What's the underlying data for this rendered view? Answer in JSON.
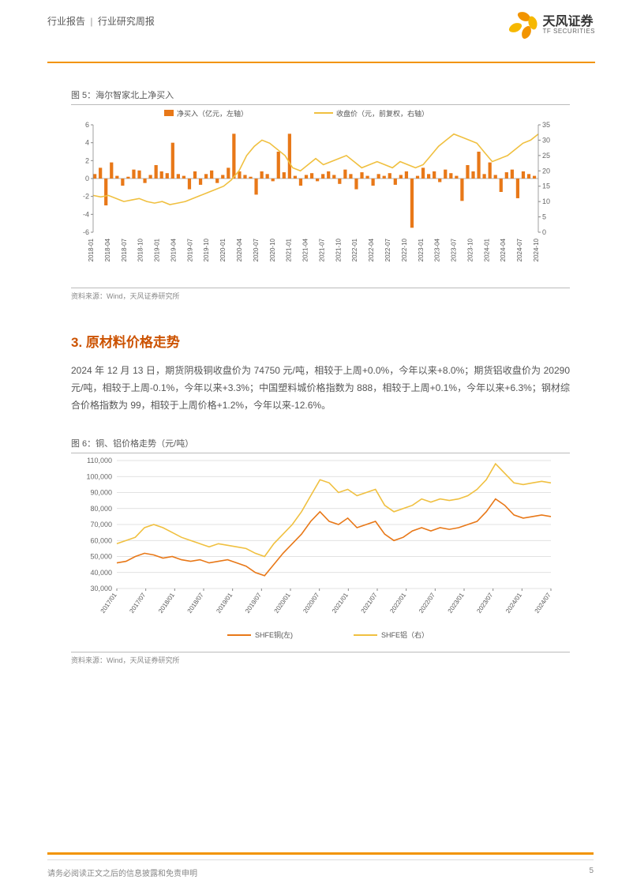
{
  "header": {
    "category": "行业报告",
    "subcategory": "行业研究周报",
    "logo_cn": "天风证券",
    "logo_en": "TF SECURITIES"
  },
  "chart5": {
    "title": "图 5：海尔智家北上净买入",
    "source": "资料来源：Wind，天风证券研究所",
    "legend": [
      {
        "label": "净买入（亿元，左轴）",
        "color": "#e87818"
      },
      {
        "label": "收盘价（元，前复权，右轴）",
        "color": "#f0c040"
      }
    ],
    "y_left": {
      "min": -6,
      "max": 6,
      "ticks": [
        -6,
        -4,
        -2,
        0,
        2,
        4,
        6
      ],
      "label_color": "#666666"
    },
    "y_right": {
      "min": 0,
      "max": 35,
      "ticks": [
        0,
        5,
        10,
        15,
        20,
        25,
        30,
        35
      ],
      "label_color": "#666666"
    },
    "x_labels": [
      "2018-01",
      "2018-04",
      "2018-07",
      "2018-10",
      "2019-01",
      "2019-04",
      "2019-07",
      "2019-10",
      "2020-01",
      "2020-04",
      "2020-07",
      "2020-10",
      "2021-01",
      "2021-04",
      "2021-07",
      "2021-10",
      "2022-01",
      "2022-04",
      "2022-07",
      "2022-10",
      "2023-01",
      "2023-04",
      "2023-07",
      "2023-10",
      "2024-01",
      "2024-04",
      "2024-07",
      "2024-10"
    ],
    "bar_color": "#e87818",
    "line_color": "#f0c040",
    "background": "#ffffff",
    "grid_color": "#dddddd",
    "x_label_fontsize": 8,
    "y_label_fontsize": 9,
    "bars": [
      0.5,
      1.2,
      -3,
      1.8,
      0.3,
      -0.8,
      0.2,
      1.0,
      0.9,
      -0.5,
      0.4,
      1.5,
      0.8,
      0.6,
      4,
      0.5,
      0.3,
      -1.2,
      0.8,
      -0.7,
      0.5,
      0.9,
      -0.5,
      0.4,
      1.2,
      5,
      0.8,
      0.4,
      0.2,
      -1.8,
      0.8,
      0.5,
      -0.3,
      3,
      0.7,
      5,
      0.3,
      -0.8,
      0.4,
      0.6,
      -0.3,
      0.5,
      0.8,
      0.4,
      -0.6,
      1.0,
      0.5,
      -1.2,
      0.7,
      0.3,
      -0.8,
      0.5,
      0.3,
      0.6,
      -0.7,
      0.4,
      0.8,
      -5.5,
      0.3,
      1.2,
      0.5,
      0.8,
      -0.4,
      1.0,
      0.6,
      0.3,
      -2.5,
      1.5,
      0.8,
      3,
      0.5,
      1.8,
      0.4,
      -1.5,
      0.7,
      1.0,
      -2.2,
      0.8,
      0.5,
      0.3
    ],
    "price_line": [
      12,
      11.5,
      12,
      11,
      10,
      10.5,
      11,
      10,
      9.5,
      10,
      9,
      9.5,
      10,
      11,
      12,
      13,
      14,
      15,
      17,
      20,
      25,
      28,
      30,
      29,
      27,
      25,
      21,
      20,
      22,
      24,
      22,
      23,
      24,
      25,
      23,
      21,
      22,
      23,
      22,
      21,
      23,
      22,
      21,
      22,
      25,
      28,
      30,
      32,
      31,
      30,
      29,
      26,
      23,
      24,
      25,
      27,
      29,
      30,
      32
    ]
  },
  "section3": {
    "title": "3. 原材料价格走势",
    "body": "2024 年 12 月 13 日，期货阴极铜收盘价为 74750 元/吨，相较于上周+0.0%，今年以来+8.0%；期货铝收盘价为 20290 元/吨，相较于上周-0.1%，今年以来+3.3%；中国塑料城价格指数为 888，相较于上周+0.1%，今年以来+6.3%；钢材综合价格指数为 99，相较于上周价格+1.2%，今年以来-12.6%。"
  },
  "chart6": {
    "title": "图 6：铜、铝价格走势（元/吨）",
    "source": "资料来源：Wind，天风证券研究所",
    "legend": [
      {
        "label": "SHFE铜(左)",
        "color": "#e87818"
      },
      {
        "label": "SHFE铝（右）",
        "color": "#f0c040"
      }
    ],
    "y_left": {
      "min": 30000,
      "max": 110000,
      "ticks": [
        30000,
        40000,
        50000,
        60000,
        70000,
        80000,
        90000,
        100000,
        110000
      ],
      "label_color": "#666666"
    },
    "x_labels": [
      "2017/01",
      "2017/07",
      "2018/01",
      "2018/07",
      "2019/01",
      "2019/07",
      "2020/01",
      "2020/07",
      "2021/01",
      "2021/07",
      "2022/01",
      "2022/07",
      "2023/01",
      "2023/07",
      "2024/01",
      "2024/07"
    ],
    "grid_color": "#d8d8d8",
    "background": "#ffffff",
    "x_label_fontsize": 8,
    "y_label_fontsize": 9,
    "copper_color": "#e87818",
    "aluminum_color": "#f0c040",
    "copper": [
      46000,
      47000,
      50000,
      52000,
      51000,
      49000,
      50000,
      48000,
      47000,
      48000,
      46000,
      47000,
      48000,
      46000,
      44000,
      40000,
      38000,
      45000,
      52000,
      58000,
      64000,
      72000,
      78000,
      72000,
      70000,
      74000,
      68000,
      70000,
      72000,
      64000,
      60000,
      62000,
      66000,
      68000,
      66000,
      68000,
      67000,
      68000,
      70000,
      72000,
      78000,
      86000,
      82000,
      76000,
      74000,
      75000,
      76000,
      75000
    ],
    "aluminum": [
      58000,
      60000,
      62000,
      68000,
      70000,
      68000,
      65000,
      62000,
      60000,
      58000,
      56000,
      58000,
      57000,
      56000,
      55000,
      52000,
      50000,
      58000,
      64000,
      70000,
      78000,
      88000,
      98000,
      96000,
      90000,
      92000,
      88000,
      90000,
      92000,
      82000,
      78000,
      80000,
      82000,
      86000,
      84000,
      86000,
      85000,
      86000,
      88000,
      92000,
      98000,
      108000,
      102000,
      96000,
      95000,
      96000,
      97000,
      96000
    ]
  },
  "footer": {
    "disclaimer": "请务必阅读正文之后的信息披露和免责申明",
    "page_number": "5"
  }
}
